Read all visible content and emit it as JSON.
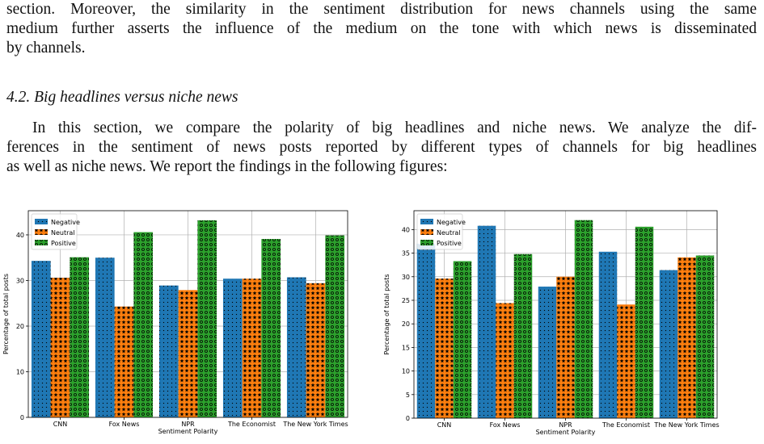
{
  "paragraph_top": {
    "lines": [
      "section. Moreover, the similarity in the sentiment distribution for news channels using the same",
      "medium further asserts the influence of the medium on the tone with which news is disseminated",
      "by channels."
    ]
  },
  "section": {
    "heading": "4.2. Big headlines versus niche news"
  },
  "paragraph_bottom": {
    "lines": [
      "In this section, we compare the polarity of big headlines and niche news. We analyze the dif-",
      "ferences in the sentiment of news posts reported by different types of channels for big headlines",
      "as well as niche news. We report the findings in the following figures:"
    ]
  },
  "colors": {
    "negative": "#1f77b4",
    "neutral": "#ff7f0e",
    "positive": "#2ca02c"
  },
  "chart_data": [
    {
      "type": "bar",
      "categories": [
        "CNN",
        "Fox News",
        "NPR",
        "The Economist",
        "The New York Times"
      ],
      "series": [
        {
          "name": "Negative",
          "values": [
            34.3,
            35.0,
            28.9,
            30.4,
            30.7
          ],
          "hatch": "dots"
        },
        {
          "name": "Neutral",
          "values": [
            30.6,
            24.3,
            27.9,
            30.4,
            29.4
          ],
          "hatch": "stars"
        },
        {
          "name": "Positive",
          "values": [
            35.1,
            40.6,
            43.2,
            39.1,
            39.9
          ],
          "hatch": "circles"
        }
      ],
      "xlabel": "Sentiment Polarity",
      "ylabel": "Percentage of total posts",
      "yticks": [
        0,
        10,
        20,
        30,
        40
      ],
      "ylim": [
        0,
        45.3
      ],
      "grid": true,
      "legend": "top-left"
    },
    {
      "type": "bar",
      "categories": [
        "CNN",
        "Fox News",
        "NPR",
        "The Economist",
        "The New York Times"
      ],
      "series": [
        {
          "name": "Negative",
          "values": [
            37.0,
            40.8,
            27.9,
            35.3,
            31.4
          ],
          "hatch": "dots"
        },
        {
          "name": "Neutral",
          "values": [
            29.6,
            24.4,
            30.0,
            24.1,
            34.1
          ],
          "hatch": "stars"
        },
        {
          "name": "Positive",
          "values": [
            33.3,
            34.8,
            42.0,
            40.6,
            34.5
          ],
          "hatch": "circles"
        }
      ],
      "xlabel": "Sentiment Polarity",
      "ylabel": "Percentage of total posts",
      "yticks": [
        0,
        5,
        10,
        15,
        20,
        25,
        30,
        35,
        40
      ],
      "ylim": [
        0,
        44.0
      ],
      "grid": true,
      "legend": "top-left"
    }
  ]
}
